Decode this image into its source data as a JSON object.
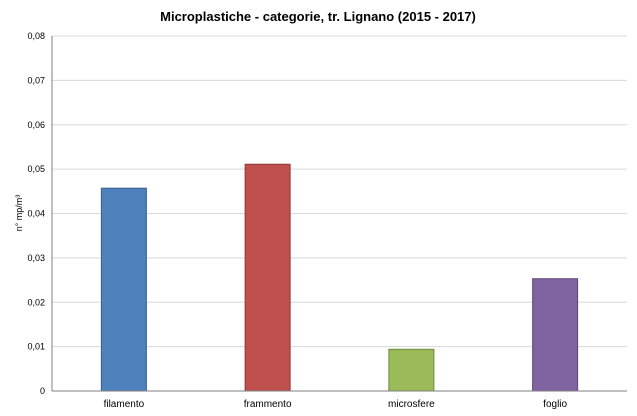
{
  "chart_data": {
    "type": "bar",
    "title": "Microplastiche - categorie, tr. Lignano (2015 - 2017)",
    "xlabel": "",
    "ylabel": "n° mp/m³",
    "ylim": [
      0,
      0.08
    ],
    "ytick_labels": [
      "0",
      "0,01",
      "0,02",
      "0,03",
      "0,04",
      "0,05",
      "0,06",
      "0,07",
      "0,08"
    ],
    "ytick_values": [
      0,
      0.01,
      0.02,
      0.03,
      0.04,
      0.05,
      0.06,
      0.07,
      0.08
    ],
    "categories": [
      "filamento",
      "frammento",
      "microsfere",
      "foglio"
    ],
    "values": [
      0.0457,
      0.0511,
      0.0094,
      0.0253
    ],
    "colors": [
      "#4f81bd",
      "#c0504d",
      "#9bbb59",
      "#8064a2"
    ],
    "edge_colors": [
      "#385d8a",
      "#8c3836",
      "#71893f",
      "#5c4776"
    ],
    "grid": true,
    "legend": "none"
  }
}
